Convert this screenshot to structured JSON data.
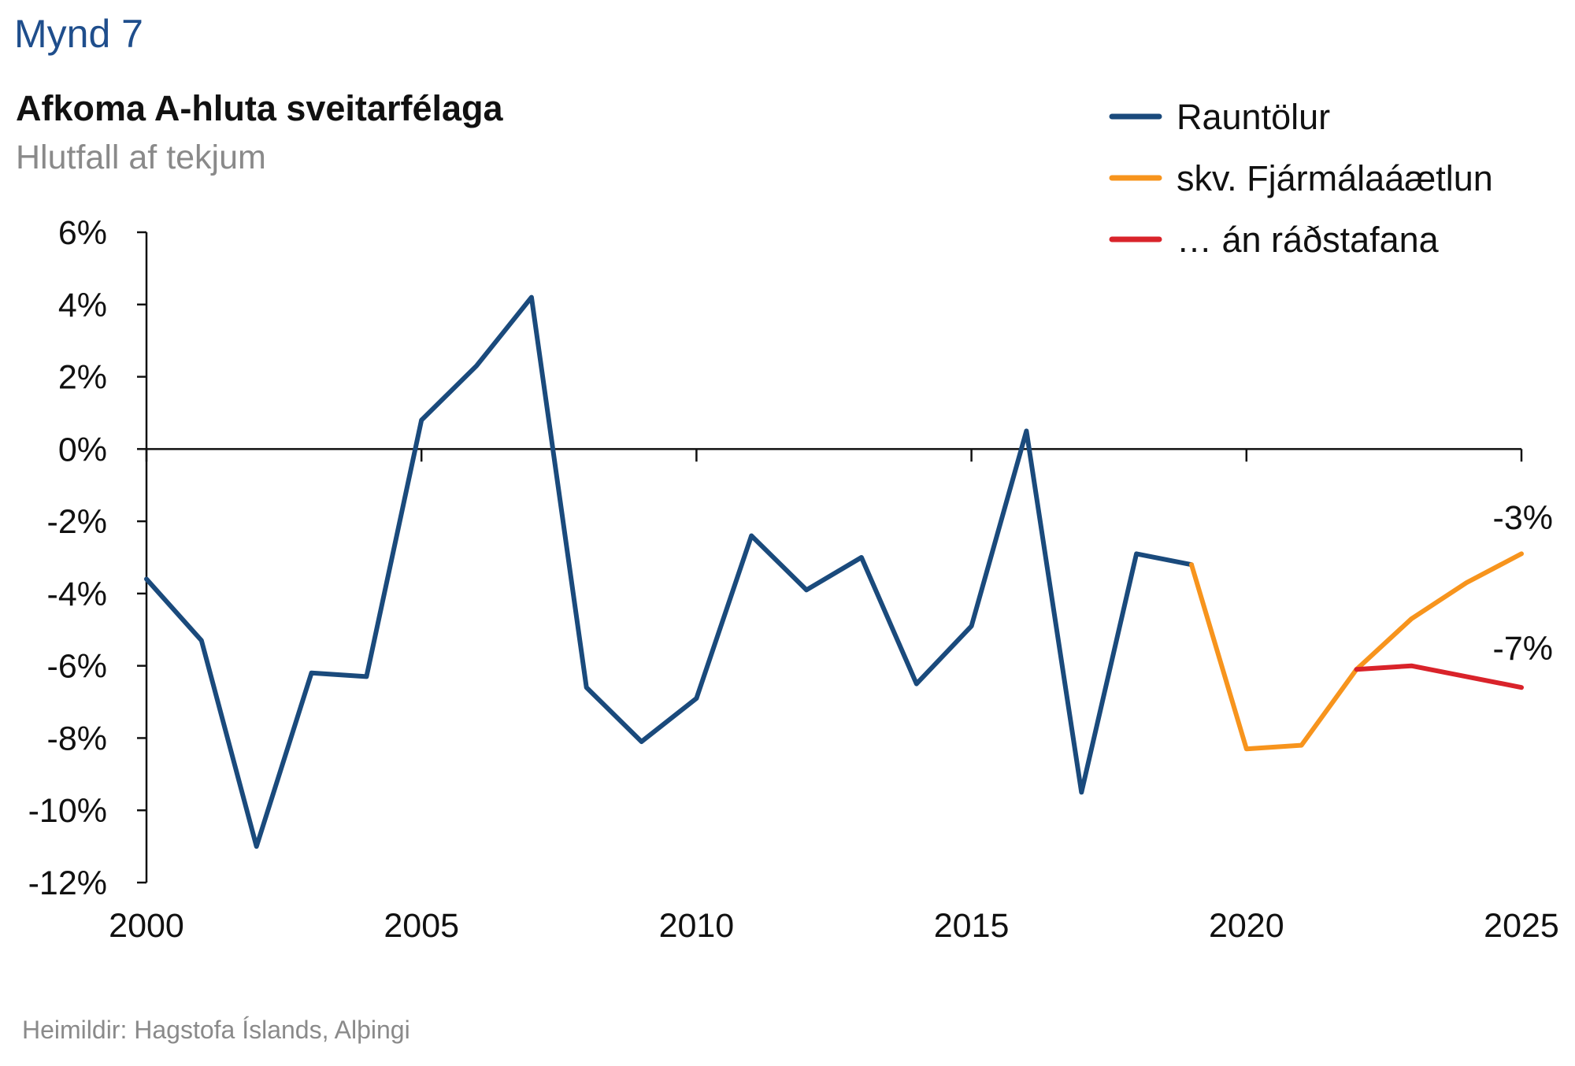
{
  "figure_label": "Mynd 7",
  "source": "Heimildir: Hagstofa Íslands, Alþingi",
  "chart_data": {
    "type": "line",
    "title": "Afkoma A-hluta sveitarfélaga",
    "subtitle": "Hlutfall af tekjum",
    "xlabel": "",
    "ylabel": "",
    "xlim": [
      2000,
      2025
    ],
    "ylim": [
      -12,
      6
    ],
    "x_ticks": [
      "2000",
      "2005",
      "2010",
      "2015",
      "2020",
      "2025"
    ],
    "y_ticks": [
      "6%",
      "4%",
      "2%",
      "0%",
      "-2%",
      "-4%",
      "-6%",
      "-8%",
      "-10%",
      "-12%"
    ],
    "legend_position": "top-right",
    "grid": false,
    "series": [
      {
        "name": "Rauntölur",
        "color": "#1a4a7c",
        "x": [
          2000,
          2001,
          2002,
          2003,
          2004,
          2005,
          2006,
          2007,
          2008,
          2009,
          2010,
          2011,
          2012,
          2013,
          2014,
          2015,
          2016,
          2017,
          2018,
          2019
        ],
        "y": [
          -3.6,
          -5.3,
          -11.0,
          -6.2,
          -6.3,
          0.8,
          2.3,
          4.2,
          -6.6,
          -8.1,
          -6.9,
          -2.4,
          -3.9,
          -3.0,
          -6.5,
          -4.9,
          0.5,
          -9.5,
          -2.9,
          -3.2
        ]
      },
      {
        "name": "skv. Fjármálaáætlun",
        "color": "#f7941d",
        "x": [
          2019,
          2020,
          2021,
          2022,
          2023,
          2024,
          2025
        ],
        "y": [
          -3.2,
          -8.3,
          -8.2,
          -6.1,
          -4.7,
          -3.7,
          -2.9
        ]
      },
      {
        "name": "… án ráðstafana",
        "color": "#d9232a",
        "x": [
          2022,
          2023,
          2024,
          2025
        ],
        "y": [
          -6.1,
          -6.0,
          -6.3,
          -6.6
        ]
      }
    ],
    "annotations": [
      {
        "text": "-3%",
        "x": 2025,
        "y": -2.9
      },
      {
        "text": "-7%",
        "x": 2025,
        "y": -6.6
      }
    ]
  }
}
